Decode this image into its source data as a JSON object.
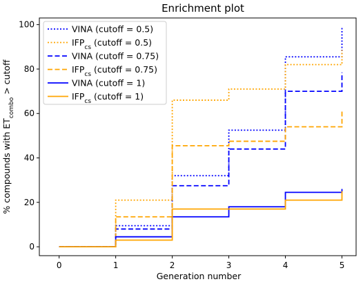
{
  "chart_data": {
    "type": "line",
    "step": "post",
    "title": "Enrichment plot",
    "xlabel": "Generation number",
    "ylabel_parts": [
      "% compounds with ET",
      "combo",
      " > cutoff"
    ],
    "xlim": [
      -0.35,
      5.25
    ],
    "ylim": [
      -4,
      103
    ],
    "xticks": [
      0,
      1,
      2,
      3,
      4,
      5
    ],
    "yticks": [
      0,
      20,
      40,
      60,
      80,
      100
    ],
    "grid": false,
    "legend_position": "top-left",
    "x": [
      0,
      1,
      2,
      3,
      4,
      5
    ],
    "series": [
      {
        "name": "VINA (cutoff = 0.5)",
        "label_parts": [
          "VINA (cutoff = 0.5)"
        ],
        "color": "#0000ff",
        "dash": "dotted",
        "values": [
          0,
          9.5,
          32,
          52.5,
          85.5,
          99
        ]
      },
      {
        "name": "IFPcs (cutoff = 0.5)",
        "label_parts": [
          "IFP",
          "cs",
          " (cutoff = 0.5)"
        ],
        "color": "#ffa500",
        "dash": "dotted",
        "values": [
          0,
          21,
          66,
          71,
          82,
          88.5
        ]
      },
      {
        "name": "VINA (cutoff = 0.75)",
        "label_parts": [
          "VINA (cutoff = 0.75)"
        ],
        "color": "#0000ff",
        "dash": "dashed",
        "values": [
          0,
          8,
          27.5,
          44,
          70,
          78.5
        ]
      },
      {
        "name": "IFPcs (cutoff = 0.75)",
        "label_parts": [
          "IFP",
          "cs",
          " (cutoff = 0.75)"
        ],
        "color": "#ffa500",
        "dash": "dashed",
        "values": [
          0,
          13.5,
          45.5,
          47.5,
          54,
          61.5
        ]
      },
      {
        "name": "VINA (cutoff = 1)",
        "label_parts": [
          "VINA (cutoff = 1)"
        ],
        "color": "#0000ff",
        "dash": "solid",
        "values": [
          0,
          4.5,
          13.5,
          18,
          24.5,
          26
        ]
      },
      {
        "name": "IFPcs (cutoff = 1)",
        "label_parts": [
          "IFP",
          "cs",
          " (cutoff = 1)"
        ],
        "color": "#ffa500",
        "dash": "solid",
        "values": [
          0,
          3,
          17,
          17,
          21,
          25
        ]
      }
    ]
  }
}
